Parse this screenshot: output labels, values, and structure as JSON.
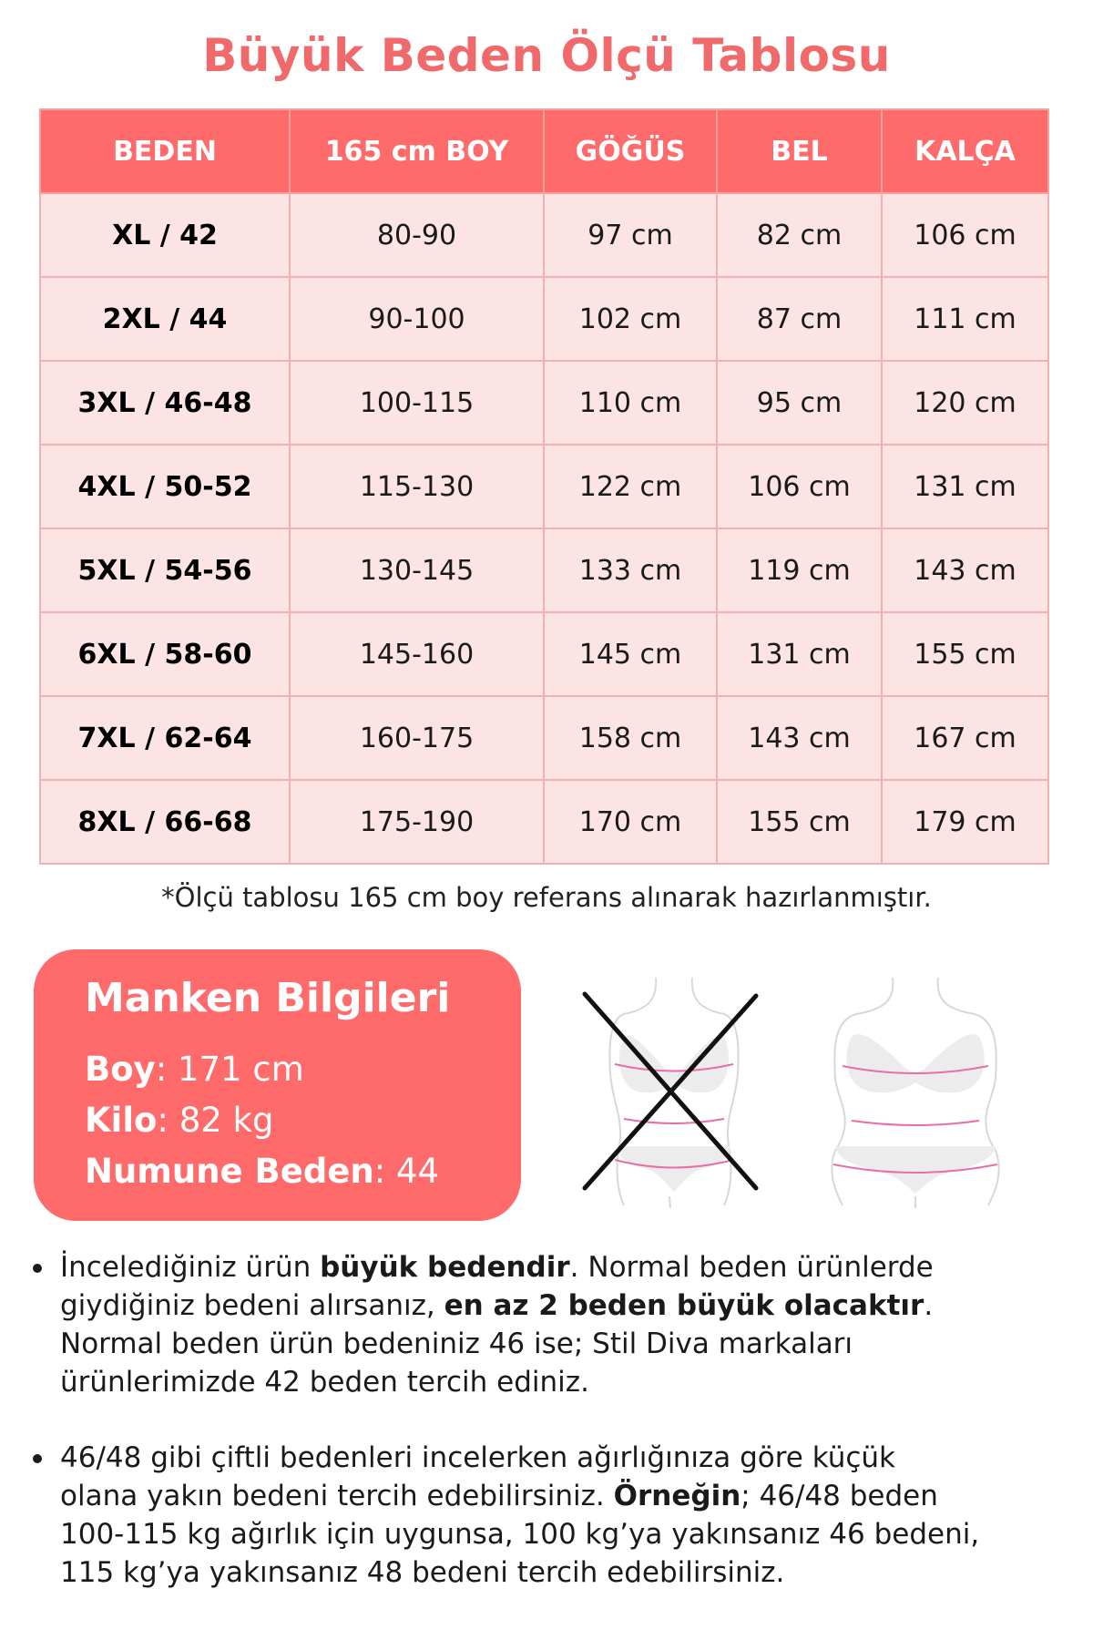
{
  "title": "Büyük Beden Ölçü Tablosu",
  "colors": {
    "accent": "#ff6a6a",
    "title": "#f06a6b",
    "row_bg": "#fde4e4",
    "border": "#f2b0b0"
  },
  "table": {
    "headers": [
      "BEDEN",
      "165 cm BOY",
      "GÖĞÜS",
      "BEL",
      "KALÇA"
    ],
    "rows": [
      [
        "XL / 42",
        "80-90",
        "97 cm",
        "82 cm",
        "106 cm"
      ],
      [
        "2XL / 44",
        "90-100",
        "102 cm",
        "87 cm",
        "111 cm"
      ],
      [
        "3XL / 46-48",
        "100-115",
        "110 cm",
        "95 cm",
        "120 cm"
      ],
      [
        "4XL / 50-52",
        "115-130",
        "122 cm",
        "106 cm",
        "131 cm"
      ],
      [
        "5XL / 54-56",
        "130-145",
        "133 cm",
        "119 cm",
        "143 cm"
      ],
      [
        "6XL / 58-60",
        "145-160",
        "145 cm",
        "131 cm",
        "155 cm"
      ],
      [
        "7XL / 62-64",
        "160-175",
        "158 cm",
        "143 cm",
        "167 cm"
      ],
      [
        "8XL / 66-68",
        "175-190",
        "170 cm",
        "155 cm",
        "179 cm"
      ]
    ]
  },
  "note": "*Ölçü tablosu 165 cm boy referans alınarak hazırlanmıştır.",
  "manken": {
    "title": "Manken Bilgileri",
    "items": [
      {
        "label": "Boy",
        "value": ": 171 cm"
      },
      {
        "label": "Kilo",
        "value": ": 82 kg"
      },
      {
        "label": "Numune Beden",
        "value": ": 44"
      }
    ]
  },
  "figures": [
    {
      "icon": "body-measure-wrong-crossed-icon"
    },
    {
      "icon": "body-measure-correct-icon"
    }
  ],
  "bullets": [
    {
      "lines": [
        [
          {
            "t": "İncelediğiniz ürün "
          },
          {
            "t": "büyük bedendir",
            "b": true
          },
          {
            "t": ". Normal beden ürünlerde"
          }
        ],
        [
          {
            "t": "giydiğiniz bedeni alırsanız, "
          },
          {
            "t": "en az 2 beden büyük olacaktır",
            "b": true
          },
          {
            "t": "."
          }
        ],
        [
          {
            "t": "Normal beden ürün bedeniniz 46 ise; Stil Diva markaları"
          }
        ],
        [
          {
            "t": "ürünlerimizde 42 beden tercih ediniz."
          }
        ]
      ]
    },
    {
      "lines": [
        [
          {
            "t": "46/48 gibi çiftli bedenleri incelerken ağırlığınıza göre küçük"
          }
        ],
        [
          {
            "t": "olana yakın bedeni tercih edebilirsiniz. "
          },
          {
            "t": "Örneğin",
            "b": true
          },
          {
            "t": "; 46/48 beden"
          }
        ],
        [
          {
            "t": "100-115 kg ağırlık için uygunsa, 100 kg’ya yakınsanız 46 bedeni,"
          }
        ],
        [
          {
            "t": "115 kg’ya yakınsanız 48 bedeni tercih edebilirsiniz."
          }
        ]
      ]
    }
  ]
}
